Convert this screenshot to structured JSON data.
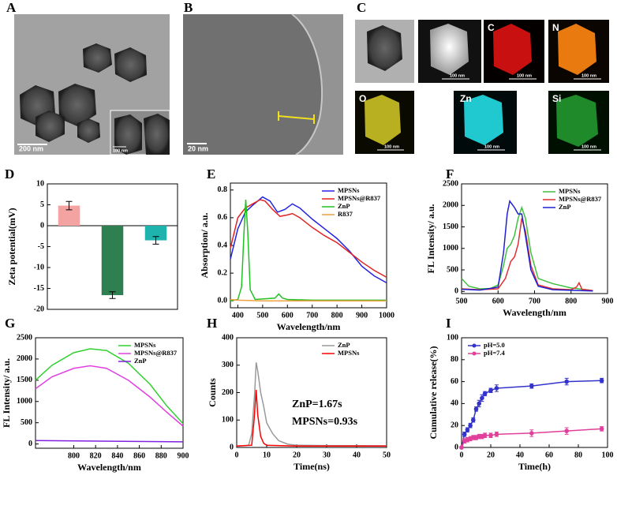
{
  "images": [
    {
      "label": "A",
      "scale_bar": "200 nm",
      "inset_scale_bar": "100 nm"
    },
    {
      "label": "B",
      "scale_bar": "20 nm"
    },
    {
      "label": "C",
      "tiles": [
        {
          "scale_bar": "100 nm"
        },
        {
          "element": "C",
          "scale_bar": "100 nm"
        },
        {
          "element": "N",
          "scale_bar": "100 nm"
        },
        {
          "element": "O",
          "scale_bar": "100 nm"
        },
        {
          "element": "Zn",
          "scale_bar": "100 nm"
        },
        {
          "element": "Si",
          "scale_bar": "100 nm"
        }
      ]
    }
  ],
  "chart_data": [
    {
      "type": "bar",
      "label": "D",
      "ylabel": "Zeta potential(mV)",
      "categories": [
        null,
        null,
        null
      ],
      "values": [
        4.8,
        -16.6,
        -3.5
      ],
      "errors": [
        1.0,
        0.8,
        0.9
      ],
      "colors": [
        "#f4a3a3",
        "#2e8050",
        "#1fb3ad"
      ],
      "ylim": [
        -20,
        10
      ],
      "yticks": [
        -20,
        -15,
        -10,
        -5,
        0,
        5,
        10
      ]
    },
    {
      "type": "line",
      "label": "E",
      "xlabel": "Wavelength/nm",
      "ylabel": "Absorption/ a.u.",
      "xlim": [
        370,
        1000
      ],
      "xticks": [
        400,
        500,
        600,
        700,
        800,
        900,
        1000
      ],
      "ylim": [
        -0.05,
        0.85
      ],
      "yticks": [
        {
          "value": 0,
          "label": "0.0"
        },
        0.2,
        0.4,
        0.6,
        0.8
      ],
      "legend": "upper right",
      "series": [
        {
          "name": "MPSNs",
          "color": "#2424e0",
          "x": [
            370,
            400,
            430,
            460,
            500,
            530,
            560,
            590,
            620,
            650,
            700,
            750,
            800,
            850,
            900,
            950,
            1000
          ],
          "values": [
            0.3,
            0.52,
            0.64,
            0.69,
            0.75,
            0.72,
            0.64,
            0.66,
            0.7,
            0.67,
            0.59,
            0.52,
            0.45,
            0.36,
            0.25,
            0.18,
            0.13
          ]
        },
        {
          "name": "MPSNs@R837",
          "color": "#e02424",
          "x": [
            370,
            400,
            430,
            460,
            490,
            510,
            540,
            570,
            600,
            620,
            650,
            700,
            750,
            800,
            850,
            900,
            950,
            1000
          ],
          "values": [
            0.38,
            0.6,
            0.67,
            0.7,
            0.73,
            0.72,
            0.66,
            0.61,
            0.62,
            0.63,
            0.6,
            0.53,
            0.47,
            0.42,
            0.35,
            0.28,
            0.22,
            0.17
          ]
        },
        {
          "name": "ZnP",
          "color": "#22c022",
          "x": [
            370,
            400,
            415,
            425,
            432,
            440,
            450,
            470,
            550,
            565,
            580,
            600,
            700,
            1000
          ],
          "values": [
            0,
            0.01,
            0.1,
            0.5,
            0.73,
            0.5,
            0.08,
            0.01,
            0.02,
            0.05,
            0.02,
            0.01,
            0.005,
            0.005
          ]
        },
        {
          "name": "R837",
          "color": "#f0a040",
          "x": [
            370,
            400,
            500,
            1000
          ],
          "values": [
            0.01,
            0.005,
            0,
            0
          ]
        }
      ]
    },
    {
      "type": "line",
      "label": "F",
      "xlabel": "Wavelength/nm",
      "ylabel": "FL Intensity/ a.u.",
      "xlim": [
        500,
        900
      ],
      "xticks": [
        500,
        600,
        700,
        800,
        900
      ],
      "ylim": [
        -50,
        2500
      ],
      "yticks": [
        0,
        500,
        1000,
        1500,
        2000,
        2500
      ],
      "legend": "upper right",
      "series": [
        {
          "name": "MPSNs",
          "color": "#40c040",
          "x": [
            500,
            520,
            550,
            580,
            600,
            615,
            625,
            635,
            645,
            655,
            665,
            675,
            690,
            710,
            750,
            800,
            850,
            860
          ],
          "values": [
            300,
            120,
            60,
            70,
            150,
            600,
            1000,
            1100,
            1300,
            1700,
            1950,
            1700,
            900,
            300,
            180,
            80,
            30,
            20
          ]
        },
        {
          "name": "MPSNs@R837",
          "color": "#e03030",
          "x": [
            500,
            550,
            600,
            620,
            635,
            645,
            655,
            665,
            675,
            690,
            710,
            750,
            800,
            815,
            822,
            830,
            860
          ],
          "values": [
            60,
            40,
            60,
            300,
            700,
            800,
            1100,
            1700,
            1400,
            600,
            150,
            60,
            40,
            100,
            200,
            50,
            20
          ]
        },
        {
          "name": "ZnP",
          "color": "#2020d0",
          "x": [
            500,
            550,
            600,
            615,
            625,
            632,
            645,
            655,
            665,
            675,
            690,
            710,
            750,
            860
          ],
          "values": [
            50,
            30,
            100,
            900,
            1800,
            2100,
            1950,
            1800,
            1800,
            1300,
            500,
            120,
            40,
            10
          ]
        }
      ]
    },
    {
      "type": "line",
      "label": "G",
      "xlabel": "Wavelength/nm",
      "ylabel": "FL Intensity/ a.u.",
      "xlim": [
        765,
        900
      ],
      "xticks": [
        800,
        820,
        840,
        860,
        880,
        900
      ],
      "ylim": [
        -100,
        2500
      ],
      "yticks": [
        0,
        500,
        1000,
        1500,
        2000,
        2500
      ],
      "legend": "upper right",
      "series": [
        {
          "name": "MPSNs",
          "color": "#30d030",
          "x": [
            765,
            780,
            800,
            815,
            830,
            850,
            870,
            885,
            900
          ],
          "values": [
            1500,
            1850,
            2150,
            2240,
            2200,
            1900,
            1400,
            900,
            480
          ]
        },
        {
          "name": "MPSNs@R837",
          "color": "#e040e0",
          "x": [
            765,
            780,
            800,
            815,
            830,
            850,
            870,
            885,
            900
          ],
          "values": [
            1300,
            1580,
            1780,
            1840,
            1780,
            1500,
            1100,
            750,
            420
          ]
        },
        {
          "name": "ZnP",
          "color": "#8020e0",
          "x": [
            765,
            900
          ],
          "values": [
            80,
            50
          ]
        }
      ]
    },
    {
      "type": "line",
      "label": "H",
      "xlabel": "Time(ns)",
      "ylabel": "Counts",
      "xlim": [
        0,
        50
      ],
      "xticks": [
        0,
        10,
        20,
        30,
        40,
        50
      ],
      "ylim": [
        0,
        400
      ],
      "yticks": [
        0,
        100,
        200,
        300,
        400
      ],
      "legend": "upper right",
      "annotations": [
        "ZnP=1.67s",
        "MPSNs=0.93s"
      ],
      "series": [
        {
          "name": "ZnP",
          "color": "#999999",
          "x": [
            0,
            4,
            5,
            6,
            6.5,
            7,
            8,
            9,
            10,
            12,
            14,
            17,
            20,
            30,
            50
          ],
          "values": [
            5,
            8,
            50,
            200,
            310,
            280,
            200,
            150,
            90,
            50,
            25,
            12,
            8,
            7,
            6
          ]
        },
        {
          "name": "MPSNs",
          "color": "#ff0000",
          "x": [
            0,
            5,
            5.8,
            6.5,
            7,
            8,
            9,
            10,
            20,
            50
          ],
          "values": [
            5,
            8,
            100,
            210,
            120,
            40,
            15,
            8,
            5,
            5
          ]
        }
      ]
    },
    {
      "type": "line",
      "label": "I",
      "xlabel": "Time(h)",
      "ylabel": "Cumulative release(%)",
      "xlim": [
        0,
        100
      ],
      "xticks": [
        0,
        20,
        40,
        60,
        80,
        100
      ],
      "ylim": [
        0,
        100
      ],
      "yticks": [
        0,
        20,
        40,
        60,
        80,
        100
      ],
      "legend": "upper left",
      "markers": true,
      "series": [
        {
          "name": "pH=5.0",
          "color": "#3333cc",
          "x": [
            0,
            2,
            4,
            6,
            8,
            10,
            12,
            14,
            16,
            20,
            24,
            48,
            72,
            96
          ],
          "values": [
            0,
            12,
            16,
            20,
            25,
            35,
            40,
            45,
            49,
            52,
            54,
            56,
            60,
            61
          ],
          "errors": [
            0,
            2,
            2,
            2,
            2,
            2,
            3,
            3,
            2,
            2,
            3,
            2,
            3,
            2
          ]
        },
        {
          "name": "pH=7.4",
          "color": "#e0409a",
          "x": [
            0,
            2,
            4,
            6,
            8,
            10,
            12,
            14,
            16,
            20,
            24,
            48,
            72,
            96
          ],
          "values": [
            0,
            6,
            7,
            8,
            9,
            9,
            10,
            10,
            11,
            11,
            12,
            13,
            15,
            17
          ],
          "errors": [
            0,
            2,
            2,
            2,
            2,
            2,
            2,
            2,
            2,
            2,
            2,
            3,
            3,
            2
          ]
        }
      ]
    }
  ]
}
